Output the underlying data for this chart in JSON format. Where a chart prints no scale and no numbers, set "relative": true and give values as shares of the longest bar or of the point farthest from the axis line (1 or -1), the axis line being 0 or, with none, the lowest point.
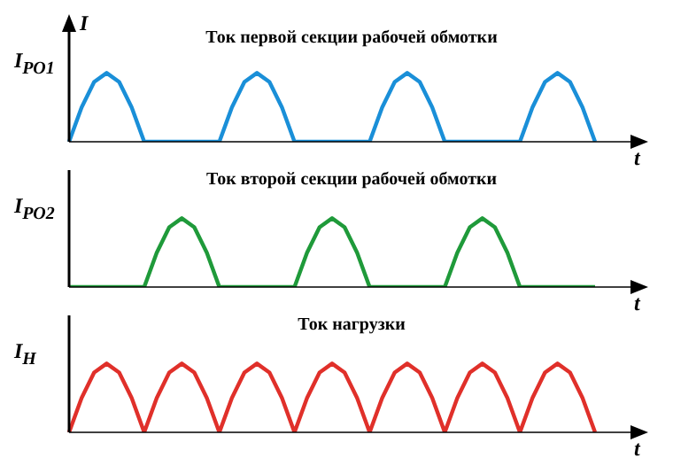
{
  "chart_data": [
    {
      "type": "line",
      "title": "Ток первой секции рабочей обмотки",
      "xlabel": "t",
      "ylabel": "I$_{РО1}$",
      "annotations": [
        "I"
      ],
      "relative": true,
      "marker": "none",
      "line_style": "solid",
      "categories": [
        null,
        null,
        null,
        null,
        null,
        null,
        null,
        null,
        null,
        null,
        null,
        null,
        null,
        null,
        null,
        null,
        null,
        null,
        null,
        null,
        null,
        null,
        null,
        null,
        null,
        null,
        null,
        null,
        null,
        null,
        null,
        null,
        null,
        null,
        null,
        null,
        null,
        null,
        null,
        null,
        null,
        null,
        null
      ],
      "series": [
        {
          "color": "#1a8fd8",
          "values": [
            0,
            0.5,
            0.87,
            1,
            0.87,
            0.5,
            0,
            0,
            0,
            0,
            0,
            0,
            0,
            0.5,
            0.87,
            1,
            0.87,
            0.5,
            0,
            0,
            0,
            0,
            0,
            0,
            0,
            0.5,
            0.87,
            1,
            0.87,
            0.5,
            0,
            0,
            0,
            0,
            0,
            0,
            0,
            0.5,
            0.87,
            1,
            0.87,
            0.5,
            0
          ]
        }
      ]
    },
    {
      "type": "line",
      "title": "Ток второй секции рабочей обмотки",
      "xlabel": "t",
      "ylabel": "I$_{РО2}$",
      "relative": true,
      "marker": "none",
      "line_style": "solid",
      "categories": [
        null,
        null,
        null,
        null,
        null,
        null,
        null,
        null,
        null,
        null,
        null,
        null,
        null,
        null,
        null,
        null,
        null,
        null,
        null,
        null,
        null,
        null,
        null,
        null,
        null,
        null,
        null,
        null,
        null,
        null,
        null,
        null,
        null,
        null,
        null,
        null,
        null,
        null,
        null,
        null,
        null,
        null,
        null
      ],
      "series": [
        {
          "color": "#1f9a3a",
          "values": [
            0,
            0,
            0,
            0,
            0,
            0,
            0,
            0.5,
            0.87,
            1,
            0.87,
            0.5,
            0,
            0,
            0,
            0,
            0,
            0,
            0,
            0.5,
            0.87,
            1,
            0.87,
            0.5,
            0,
            0,
            0,
            0,
            0,
            0,
            0,
            0.5,
            0.87,
            1,
            0.87,
            0.5,
            0,
            0,
            0,
            0,
            0,
            0,
            0
          ]
        }
      ]
    },
    {
      "type": "line",
      "title": "Ток нагрузки",
      "xlabel": "t",
      "ylabel": "I$_{Н}$",
      "relative": true,
      "marker": "none",
      "line_style": "solid",
      "categories": [
        null,
        null,
        null,
        null,
        null,
        null,
        null,
        null,
        null,
        null,
        null,
        null,
        null,
        null,
        null,
        null,
        null,
        null,
        null,
        null,
        null,
        null,
        null,
        null,
        null,
        null,
        null,
        null,
        null,
        null,
        null,
        null,
        null,
        null,
        null,
        null,
        null,
        null,
        null,
        null,
        null,
        null,
        null
      ],
      "series": [
        {
          "color": "#e0302a",
          "values": [
            0,
            0.5,
            0.87,
            1,
            0.87,
            0.5,
            0,
            0.5,
            0.87,
            1,
            0.87,
            0.5,
            0,
            0.5,
            0.87,
            1,
            0.87,
            0.5,
            0,
            0.5,
            0.87,
            1,
            0.87,
            0.5,
            0,
            0.5,
            0.87,
            1,
            0.87,
            0.5,
            0,
            0.5,
            0.87,
            1,
            0.87,
            0.5,
            0,
            0.5,
            0.87,
            1,
            0.87,
            0.5,
            0
          ]
        }
      ]
    }
  ]
}
